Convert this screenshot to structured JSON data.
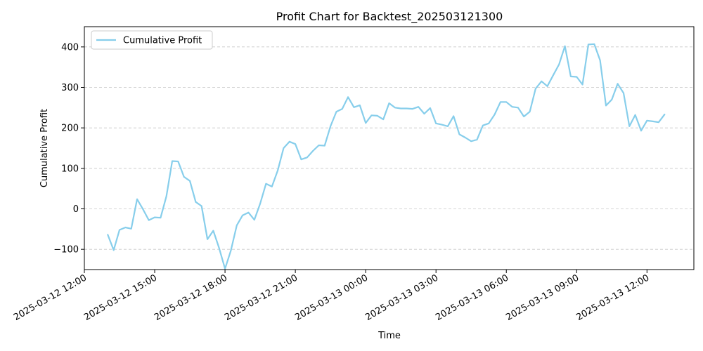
{
  "chart_data": {
    "type": "line",
    "title": "Profit Chart for Backtest_202503121300",
    "xlabel": "Time",
    "ylabel": "Cumulative Profit",
    "x_axis_type": "datetime",
    "xlim": [
      "2025-03-12 12:00",
      "2025-03-13 14:00"
    ],
    "ylim": [
      -150,
      450
    ],
    "y_ticks": [
      -100,
      0,
      100,
      200,
      300,
      400
    ],
    "x_ticks": [
      "2025-03-12 12:00",
      "2025-03-12 15:00",
      "2025-03-12 18:00",
      "2025-03-12 21:00",
      "2025-03-13 00:00",
      "2025-03-13 03:00",
      "2025-03-13 06:00",
      "2025-03-13 09:00",
      "2025-03-13 12:00"
    ],
    "grid": "y-dashed",
    "legend": "top-left",
    "series": [
      {
        "name": "Cumulative Profit",
        "color": "#87CEEB",
        "x": [
          "2025-03-12 13:00",
          "2025-03-12 13:15",
          "2025-03-12 13:30",
          "2025-03-12 13:45",
          "2025-03-12 14:00",
          "2025-03-12 14:15",
          "2025-03-12 14:30",
          "2025-03-12 14:45",
          "2025-03-12 15:00",
          "2025-03-12 15:15",
          "2025-03-12 15:30",
          "2025-03-12 15:45",
          "2025-03-12 16:00",
          "2025-03-12 16:15",
          "2025-03-12 16:30",
          "2025-03-12 16:45",
          "2025-03-12 17:00",
          "2025-03-12 17:15",
          "2025-03-12 17:30",
          "2025-03-12 17:45",
          "2025-03-12 18:00",
          "2025-03-12 18:15",
          "2025-03-12 18:30",
          "2025-03-12 18:45",
          "2025-03-12 19:00",
          "2025-03-12 19:15",
          "2025-03-12 19:30",
          "2025-03-12 19:45",
          "2025-03-12 20:00",
          "2025-03-12 20:15",
          "2025-03-12 20:30",
          "2025-03-12 20:45",
          "2025-03-12 21:00",
          "2025-03-12 21:15",
          "2025-03-12 21:30",
          "2025-03-12 21:45",
          "2025-03-12 22:00",
          "2025-03-12 22:15",
          "2025-03-12 22:30",
          "2025-03-12 22:45",
          "2025-03-12 23:00",
          "2025-03-12 23:15",
          "2025-03-12 23:30",
          "2025-03-12 23:45",
          "2025-03-13 00:00",
          "2025-03-13 00:15",
          "2025-03-13 00:30",
          "2025-03-13 00:45",
          "2025-03-13 01:00",
          "2025-03-13 01:15",
          "2025-03-13 01:30",
          "2025-03-13 01:45",
          "2025-03-13 02:00",
          "2025-03-13 02:15",
          "2025-03-13 02:30",
          "2025-03-13 02:45",
          "2025-03-13 03:00",
          "2025-03-13 03:15",
          "2025-03-13 03:30",
          "2025-03-13 03:45",
          "2025-03-13 04:00",
          "2025-03-13 04:15",
          "2025-03-13 04:30",
          "2025-03-13 04:45",
          "2025-03-13 05:00",
          "2025-03-13 05:15",
          "2025-03-13 05:30",
          "2025-03-13 05:45",
          "2025-03-13 06:00",
          "2025-03-13 06:15",
          "2025-03-13 06:30",
          "2025-03-13 06:45",
          "2025-03-13 07:00",
          "2025-03-13 07:15",
          "2025-03-13 07:30",
          "2025-03-13 07:45",
          "2025-03-13 08:00",
          "2025-03-13 08:15",
          "2025-03-13 08:30",
          "2025-03-13 08:45",
          "2025-03-13 09:00",
          "2025-03-13 09:15",
          "2025-03-13 09:30",
          "2025-03-13 09:45",
          "2025-03-13 10:00",
          "2025-03-13 10:15",
          "2025-03-13 10:30",
          "2025-03-13 10:45",
          "2025-03-13 11:00",
          "2025-03-13 11:15",
          "2025-03-13 11:30",
          "2025-03-13 11:45",
          "2025-03-13 12:00",
          "2025-03-13 12:15",
          "2025-03-13 12:30",
          "2025-03-13 12:45"
        ],
        "values": [
          -64,
          -102,
          -52,
          -46,
          -49,
          24,
          -1,
          -28,
          -21,
          -22,
          31,
          118,
          117,
          79,
          69,
          17,
          7,
          -75,
          -54,
          -97,
          -148,
          -103,
          -41,
          -16,
          -9,
          -27,
          13,
          62,
          55,
          95,
          150,
          166,
          160,
          122,
          127,
          143,
          157,
          156,
          204,
          240,
          247,
          276,
          251,
          256,
          212,
          231,
          230,
          221,
          261,
          250,
          248,
          248,
          247,
          252,
          235,
          249,
          211,
          208,
          204,
          229,
          184,
          176,
          167,
          171,
          206,
          211,
          233,
          264,
          264,
          252,
          250,
          228,
          240,
          297,
          315,
          303,
          330,
          357,
          402,
          327,
          326,
          307,
          406,
          407,
          367,
          255,
          270,
          309,
          286,
          204,
          232,
          193,
          218,
          216,
          214,
          233
        ]
      }
    ]
  }
}
